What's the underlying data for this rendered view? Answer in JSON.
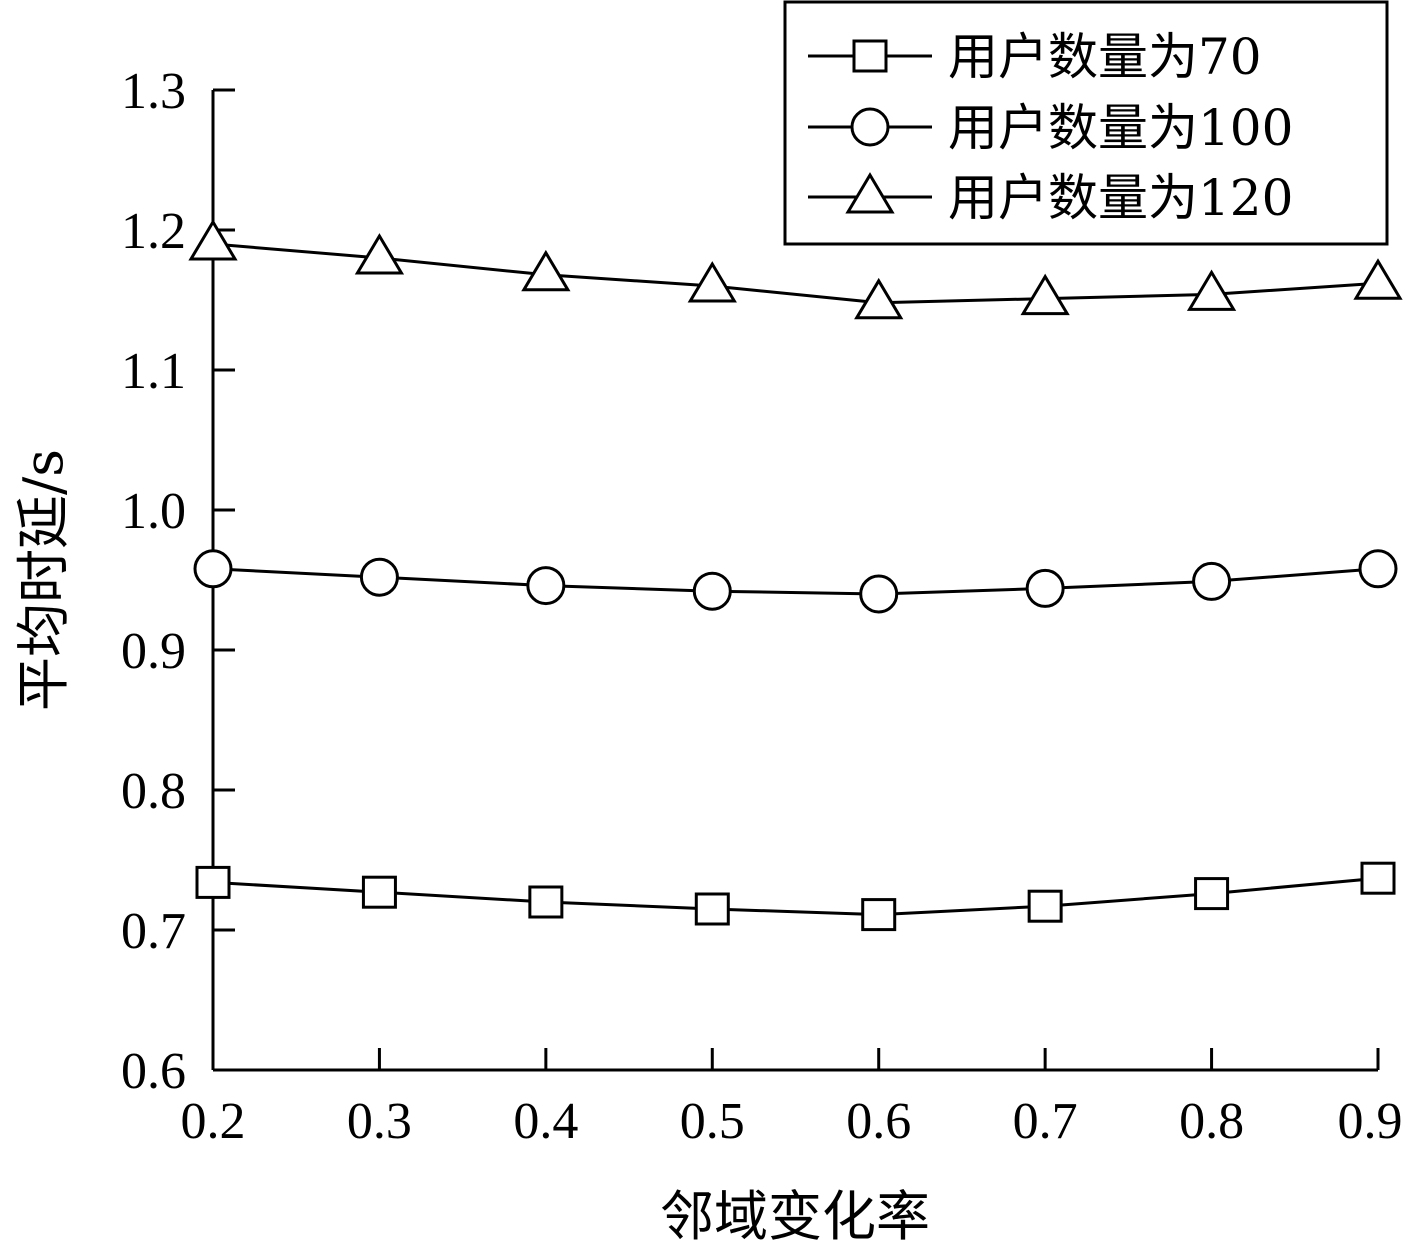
{
  "chart_data": {
    "type": "line",
    "xlabel": "邻域变化率",
    "ylabel": "平均时延/s",
    "x": [
      0.2,
      0.3,
      0.4,
      0.5,
      0.6,
      0.7,
      0.8,
      0.9
    ],
    "x_tick_labels": [
      "0.2",
      "0.3",
      "0.4",
      "0.5",
      "0.6",
      "0.7",
      "0.8",
      "0.9"
    ],
    "y_tick_values": [
      0.6,
      0.7,
      0.8,
      0.9,
      1.0,
      1.1,
      1.2,
      1.3
    ],
    "y_tick_labels": [
      "0.6",
      "0.7",
      "0.8",
      "0.9",
      "1.0",
      "1.1",
      "1.2",
      "1.3"
    ],
    "xlim": [
      0.2,
      0.9
    ],
    "ylim": [
      0.6,
      1.3
    ],
    "grid": false,
    "legend_position": "top-right",
    "series": [
      {
        "name": "用户数量为70",
        "marker": "square",
        "values": [
          0.734,
          0.727,
          0.72,
          0.715,
          0.711,
          0.717,
          0.726,
          0.737
        ]
      },
      {
        "name": "用户数量为100",
        "marker": "circle",
        "values": [
          0.958,
          0.952,
          0.946,
          0.942,
          0.94,
          0.944,
          0.949,
          0.958
        ]
      },
      {
        "name": "用户数量为120",
        "marker": "triangle",
        "values": [
          1.19,
          1.18,
          1.168,
          1.16,
          1.148,
          1.151,
          1.154,
          1.162
        ]
      }
    ]
  }
}
